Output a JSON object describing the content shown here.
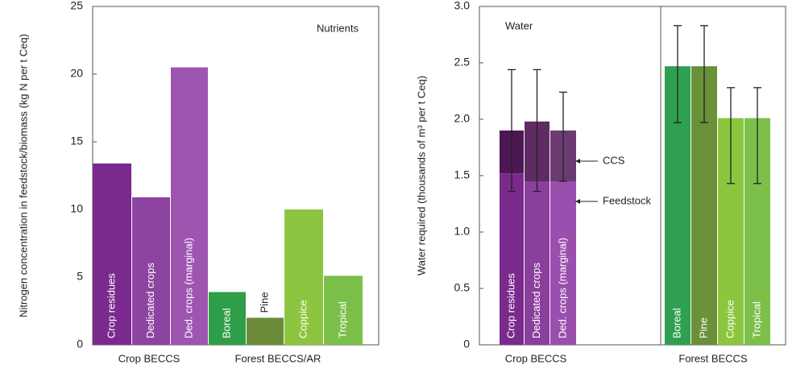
{
  "chart_data": [
    {
      "type": "bar",
      "ylabel": "Nitrogen concentration in feedstock/biomass (kg N per t Ceq)",
      "annotation": "Nutrients",
      "categories": [
        "Crop residues",
        "Dedicated crops",
        "Ded. crops (marginal)",
        "Boreal",
        "Pine",
        "Coppice",
        "Tropical"
      ],
      "values": [
        13.4,
        10.9,
        20.5,
        3.9,
        2.0,
        10.0,
        5.1
      ],
      "colors": [
        "#7a2a8e",
        "#8c44a0",
        "#9d55b0",
        "#2f9e48",
        "#6a8b37",
        "#8cc640",
        "#7bbf4b"
      ],
      "group_labels": [
        "Crop BECCS",
        "Forest BECCS/AR"
      ],
      "ylim": [
        0,
        25
      ],
      "yticks": [
        0,
        5,
        10,
        15,
        20,
        25
      ]
    },
    {
      "type": "stacked_bar",
      "ylabel": "Water required (thousands of m³ per t Ceq)",
      "annotation": "Water",
      "categories": [
        "Crop residues",
        "Dedicated crops",
        "Ded. crops (marginal)",
        "Boreal",
        "Pine",
        "Coppice",
        "Tropical"
      ],
      "series": [
        {
          "name": "Feedstock",
          "colors": [
            "#7a2a8c",
            "#8b3f9d",
            "#9a4fae",
            "#2fa050",
            "#6a9038",
            "#8cc63f",
            "#7cc04a"
          ],
          "values": [
            1.52,
            1.45,
            1.45,
            2.47,
            2.47,
            2.01,
            2.01
          ]
        },
        {
          "name": "CCS",
          "colors": [
            "#4c1753",
            "#5e2c63",
            "#6c3b72",
            null,
            null,
            null,
            null
          ],
          "values": [
            0.38,
            0.53,
            0.45,
            null,
            null,
            null,
            null
          ]
        }
      ],
      "error_upper": [
        2.44,
        2.44,
        2.24,
        2.83,
        2.83,
        2.28,
        2.28
      ],
      "error_lower": [
        1.36,
        1.36,
        1.45,
        1.97,
        1.97,
        1.43,
        1.43
      ],
      "group_labels": [
        "Crop BECCS",
        "Forest BECCS"
      ],
      "ylim": [
        0,
        3
      ],
      "yticks": [
        0,
        0.5,
        {
          "value": 1,
          "label": "1.0"
        },
        1.5,
        {
          "value": 2,
          "label": "2.0"
        },
        2.5,
        {
          "value": 3,
          "label": "3.0"
        }
      ]
    }
  ]
}
